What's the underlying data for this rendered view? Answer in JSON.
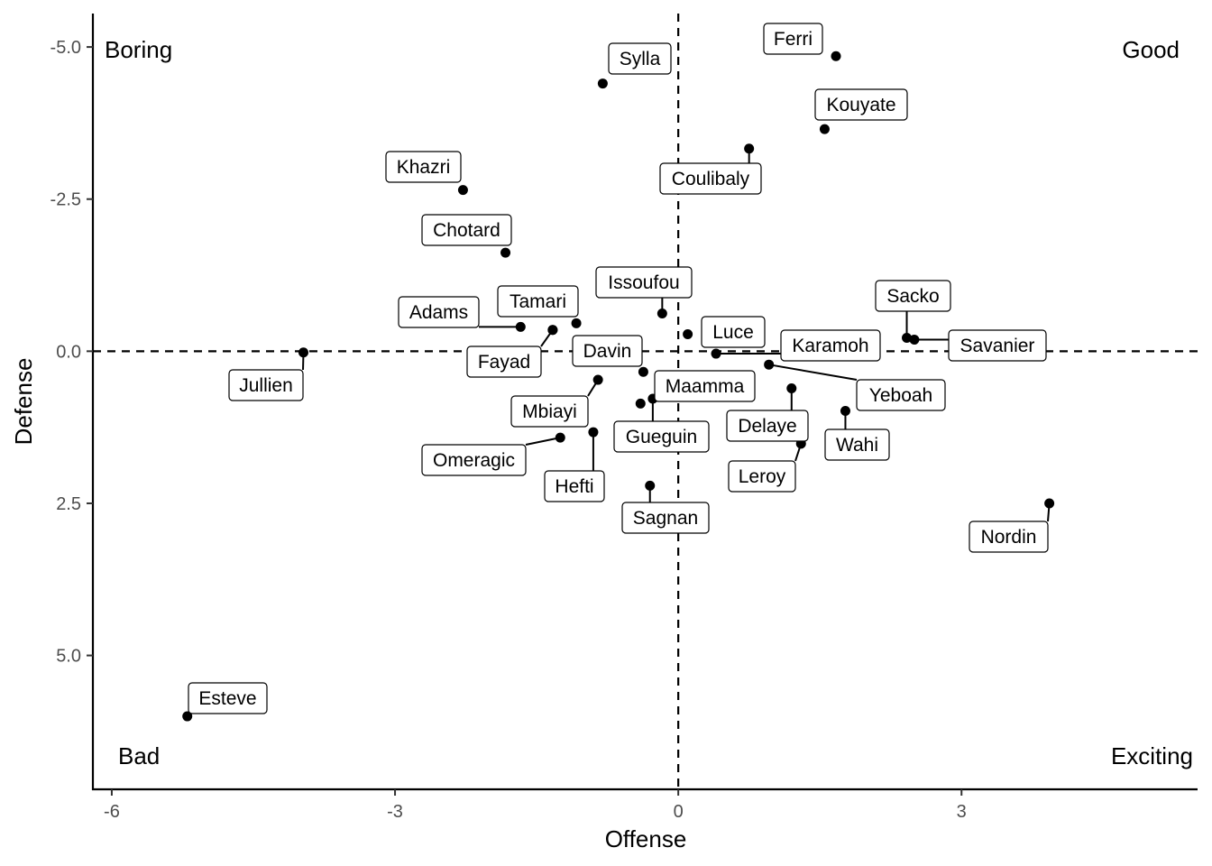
{
  "chart_data": {
    "type": "scatter",
    "xlabel": "Offense",
    "ylabel": "Defense",
    "xlim": [
      -6.2,
      5.5
    ],
    "ylim": [
      7.2,
      -5.55
    ],
    "y_axis_reversed": true,
    "x_ticks": [
      -6,
      -3,
      0,
      3
    ],
    "x_tick_labels": [
      "-6",
      "-3",
      "0",
      "3"
    ],
    "y_ticks": [
      -5,
      -2.5,
      0,
      2.5,
      5
    ],
    "y_tick_labels": [
      "-5.0",
      "-2.5",
      "0.0",
      "2.5",
      "5.0"
    ],
    "grid": false,
    "reference_lines": {
      "x": 0,
      "y": 0,
      "style": "dashed"
    },
    "quadrant_labels": {
      "top_left": "Boring",
      "top_right": "Good",
      "bottom_left": "Bad",
      "bottom_right": "Exciting"
    },
    "points": [
      {
        "label": "Ferri",
        "x": 1.67,
        "y": -4.85
      },
      {
        "label": "Sylla",
        "x": -0.8,
        "y": -4.4
      },
      {
        "label": "Kouyate",
        "x": 1.55,
        "y": -3.65
      },
      {
        "label": "Coulibaly",
        "x": 0.75,
        "y": -3.33
      },
      {
        "label": "Khazri",
        "x": -2.28,
        "y": -2.65
      },
      {
        "label": "Chotard",
        "x": -1.83,
        "y": -1.62
      },
      {
        "label": "Issoufou",
        "x": -0.17,
        "y": -0.62
      },
      {
        "label": "Adams",
        "x": -1.67,
        "y": -0.4
      },
      {
        "label": "Tamari",
        "x": -1.33,
        "y": -0.35
      },
      {
        "label": "Davin",
        "x": -1.08,
        "y": -0.46
      },
      {
        "label": "Luce",
        "x": 0.1,
        "y": -0.28
      },
      {
        "label": "Sacko",
        "x": 2.42,
        "y": -0.22
      },
      {
        "label": "Savanier",
        "x": 2.5,
        "y": -0.19
      },
      {
        "label": "Karamoh",
        "x": 0.4,
        "y": 0.04
      },
      {
        "label": "Jullien",
        "x": -3.97,
        "y": 0.02
      },
      {
        "label": "Fayad",
        "x": -1.33,
        "y": -0.35
      },
      {
        "label": "Yeboah",
        "x": 0.96,
        "y": 0.22
      },
      {
        "label": "Maamma",
        "x": -0.37,
        "y": 0.34
      },
      {
        "label": "Mbiayi",
        "x": -0.85,
        "y": 0.47
      },
      {
        "label": "Delaye",
        "x": 1.2,
        "y": 0.61
      },
      {
        "label": "Gueguin",
        "x": -0.27,
        "y": 0.78
      },
      {
        "label": "Gueguin",
        "x": -0.4,
        "y": 0.86
      },
      {
        "label": "Wahi",
        "x": 1.77,
        "y": 0.98
      },
      {
        "label": "Hefti",
        "x": -0.9,
        "y": 1.33
      },
      {
        "label": "Omeragic",
        "x": -1.25,
        "y": 1.42
      },
      {
        "label": "Leroy",
        "x": 1.3,
        "y": 1.52
      },
      {
        "label": "Sagnan",
        "x": -0.3,
        "y": 2.21
      },
      {
        "label": "Nordin",
        "x": 3.93,
        "y": 2.5
      },
      {
        "label": "Esteve",
        "x": -5.2,
        "y": 6.0
      }
    ]
  }
}
